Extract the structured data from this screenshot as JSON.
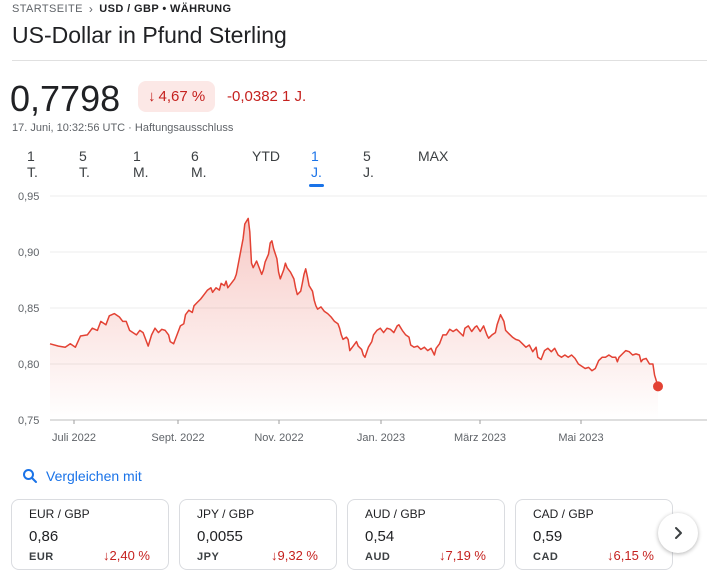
{
  "breadcrumb": {
    "root": "STARTSEITE",
    "current": "USD / GBP • WÄHRUNG"
  },
  "title": "US-Dollar in Pfund Sterling",
  "quote": {
    "price": "0,7798",
    "change_pct": "4,67 %",
    "change_abs": "-0,0382 1 J.",
    "timestamp": "17. Juni, 10:32:56 UTC · Haftungsausschluss"
  },
  "range_tabs": [
    "1 T.",
    "5 T.",
    "1 M.",
    "6 M.",
    "YTD",
    "1 J.",
    "5 J.",
    "MAX"
  ],
  "active_range": "1 J.",
  "colors": {
    "negative": "#c5221f",
    "line": "#e34234",
    "accent": "#1a73e8"
  },
  "chart_data": {
    "type": "area",
    "y_ticks": [
      "0,95",
      "0,90",
      "0,85",
      "0,80",
      "0,75"
    ],
    "x_ticks": [
      "Juli 2022",
      "Sept. 2022",
      "Nov. 2022",
      "Jan. 2023",
      "März 2023",
      "Mai 2023"
    ],
    "ylim": [
      0.75,
      0.95
    ],
    "grid": true,
    "series": [
      {
        "values": [
          [
            0,
            0.818
          ],
          [
            5,
            0.816
          ],
          [
            9,
            0.815
          ],
          [
            12,
            0.818
          ],
          [
            15,
            0.815
          ],
          [
            18,
            0.825
          ],
          [
            22,
            0.826
          ],
          [
            25,
            0.832
          ],
          [
            28,
            0.83
          ],
          [
            30,
            0.838
          ],
          [
            33,
            0.835
          ],
          [
            35,
            0.843
          ],
          [
            38,
            0.845
          ],
          [
            41,
            0.842
          ],
          [
            43,
            0.838
          ],
          [
            45,
            0.838
          ],
          [
            47,
            0.83
          ],
          [
            49,
            0.828
          ],
          [
            51,
            0.826
          ],
          [
            53,
            0.83
          ],
          [
            55,
            0.828
          ],
          [
            57,
            0.82
          ],
          [
            58,
            0.816
          ],
          [
            60,
            0.826
          ],
          [
            62,
            0.832
          ],
          [
            64,
            0.828
          ],
          [
            66,
            0.831
          ],
          [
            68,
            0.83
          ],
          [
            70,
            0.826
          ],
          [
            71,
            0.82
          ],
          [
            73,
            0.818
          ],
          [
            75,
            0.826
          ],
          [
            76,
            0.83
          ],
          [
            77,
            0.834
          ],
          [
            79,
            0.836
          ],
          [
            80,
            0.844
          ],
          [
            82,
            0.848
          ],
          [
            84,
            0.846
          ],
          [
            85,
            0.852
          ],
          [
            87,
            0.855
          ],
          [
            89,
            0.858
          ],
          [
            91,
            0.862
          ],
          [
            93,
            0.866
          ],
          [
            95,
            0.868
          ],
          [
            96,
            0.864
          ],
          [
            98,
            0.868
          ],
          [
            100,
            0.866
          ],
          [
            101,
            0.872
          ],
          [
            103,
            0.87
          ],
          [
            104,
            0.874
          ],
          [
            105,
            0.868
          ],
          [
            107,
            0.872
          ],
          [
            109,
            0.876
          ],
          [
            110,
            0.88
          ],
          [
            112,
            0.896
          ],
          [
            114,
            0.912
          ],
          [
            115,
            0.925
          ],
          [
            117,
            0.93
          ],
          [
            118,
            0.918
          ],
          [
            119,
            0.89
          ],
          [
            120,
            0.886
          ],
          [
            122,
            0.892
          ],
          [
            124,
            0.884
          ],
          [
            125,
            0.88
          ],
          [
            126,
            0.884
          ],
          [
            127,
            0.891
          ],
          [
            129,
            0.898
          ],
          [
            130,
            0.908
          ],
          [
            131,
            0.91
          ],
          [
            132,
            0.903
          ],
          [
            134,
            0.894
          ],
          [
            135,
            0.882
          ],
          [
            136,
            0.876
          ],
          [
            138,
            0.884
          ],
          [
            139,
            0.89
          ],
          [
            140,
            0.886
          ],
          [
            142,
            0.882
          ],
          [
            144,
            0.876
          ],
          [
            145,
            0.868
          ],
          [
            146,
            0.862
          ],
          [
            148,
            0.865
          ],
          [
            149,
            0.872
          ],
          [
            150,
            0.88
          ],
          [
            151,
            0.885
          ],
          [
            152,
            0.878
          ],
          [
            153,
            0.87
          ],
          [
            155,
            0.865
          ],
          [
            156,
            0.857
          ],
          [
            157,
            0.852
          ],
          [
            158,
            0.849
          ],
          [
            160,
            0.851
          ],
          [
            162,
            0.847
          ],
          [
            164,
            0.845
          ],
          [
            166,
            0.842
          ],
          [
            168,
            0.838
          ],
          [
            170,
            0.836
          ],
          [
            171,
            0.832
          ],
          [
            172,
            0.826
          ],
          [
            173,
            0.822
          ],
          [
            175,
            0.824
          ],
          [
            176,
            0.822
          ],
          [
            177,
            0.812
          ],
          [
            179,
            0.816
          ],
          [
            181,
            0.82
          ],
          [
            182,
            0.816
          ],
          [
            184,
            0.813
          ],
          [
            185,
            0.808
          ],
          [
            186,
            0.806
          ],
          [
            188,
            0.815
          ],
          [
            190,
            0.82
          ],
          [
            191,
            0.826
          ],
          [
            193,
            0.83
          ],
          [
            195,
            0.832
          ],
          [
            197,
            0.828
          ],
          [
            199,
            0.832
          ],
          [
            201,
            0.831
          ],
          [
            203,
            0.828
          ],
          [
            205,
            0.834
          ],
          [
            206,
            0.835
          ],
          [
            208,
            0.83
          ],
          [
            210,
            0.826
          ],
          [
            212,
            0.824
          ],
          [
            213,
            0.817
          ],
          [
            215,
            0.815
          ],
          [
            217,
            0.816
          ],
          [
            219,
            0.813
          ],
          [
            221,
            0.815
          ],
          [
            223,
            0.812
          ],
          [
            225,
            0.814
          ],
          [
            227,
            0.808
          ],
          [
            228,
            0.814
          ],
          [
            230,
            0.818
          ],
          [
            232,
            0.826
          ],
          [
            234,
            0.826
          ],
          [
            236,
            0.831
          ],
          [
            238,
            0.829
          ],
          [
            240,
            0.831
          ],
          [
            242,
            0.828
          ],
          [
            244,
            0.825
          ],
          [
            245,
            0.832
          ],
          [
            247,
            0.834
          ],
          [
            249,
            0.829
          ],
          [
            251,
            0.833
          ],
          [
            252,
            0.834
          ],
          [
            254,
            0.829
          ],
          [
            256,
            0.834
          ],
          [
            258,
            0.826
          ],
          [
            259,
            0.823
          ],
          [
            261,
            0.826
          ],
          [
            263,
            0.828
          ],
          [
            264,
            0.835
          ],
          [
            266,
            0.844
          ],
          [
            268,
            0.838
          ],
          [
            269,
            0.83
          ],
          [
            271,
            0.827
          ],
          [
            273,
            0.824
          ],
          [
            275,
            0.822
          ],
          [
            277,
            0.821
          ],
          [
            279,
            0.818
          ],
          [
            281,
            0.815
          ],
          [
            283,
            0.817
          ],
          [
            285,
            0.811
          ],
          [
            287,
            0.815
          ],
          [
            288,
            0.806
          ],
          [
            290,
            0.804
          ],
          [
            292,
            0.812
          ],
          [
            294,
            0.814
          ],
          [
            296,
            0.811
          ],
          [
            298,
            0.814
          ],
          [
            300,
            0.808
          ],
          [
            302,
            0.806
          ],
          [
            304,
            0.808
          ],
          [
            306,
            0.806
          ],
          [
            308,
            0.808
          ],
          [
            310,
            0.805
          ],
          [
            312,
            0.8
          ],
          [
            314,
            0.798
          ],
          [
            316,
            0.796
          ],
          [
            318,
            0.797
          ],
          [
            320,
            0.794
          ],
          [
            322,
            0.796
          ],
          [
            324,
            0.803
          ],
          [
            326,
            0.806
          ],
          [
            328,
            0.806
          ],
          [
            330,
            0.808
          ],
          [
            332,
            0.806
          ],
          [
            334,
            0.806
          ],
          [
            335,
            0.802
          ],
          [
            336,
            0.806
          ],
          [
            338,
            0.809
          ],
          [
            340,
            0.812
          ],
          [
            342,
            0.811
          ],
          [
            344,
            0.808
          ],
          [
            346,
            0.809
          ],
          [
            348,
            0.808
          ],
          [
            349,
            0.802
          ],
          [
            350,
            0.804
          ],
          [
            352,
            0.805
          ],
          [
            354,
            0.8
          ],
          [
            356,
            0.8
          ],
          [
            357,
            0.79
          ],
          [
            359,
            0.78
          ]
        ]
      }
    ]
  },
  "compare": {
    "label": "Vergleichen mit"
  },
  "cards": [
    {
      "pair": "EUR / GBP",
      "value": "0,86",
      "currency": "EUR",
      "change": "2,40 %"
    },
    {
      "pair": "JPY / GBP",
      "value": "0,0055",
      "currency": "JPY",
      "change": "9,32 %"
    },
    {
      "pair": "AUD / GBP",
      "value": "0,54",
      "currency": "AUD",
      "change": "7,19 %"
    },
    {
      "pair": "CAD / GBP",
      "value": "0,59",
      "currency": "CAD",
      "change": "6,15 %"
    }
  ]
}
